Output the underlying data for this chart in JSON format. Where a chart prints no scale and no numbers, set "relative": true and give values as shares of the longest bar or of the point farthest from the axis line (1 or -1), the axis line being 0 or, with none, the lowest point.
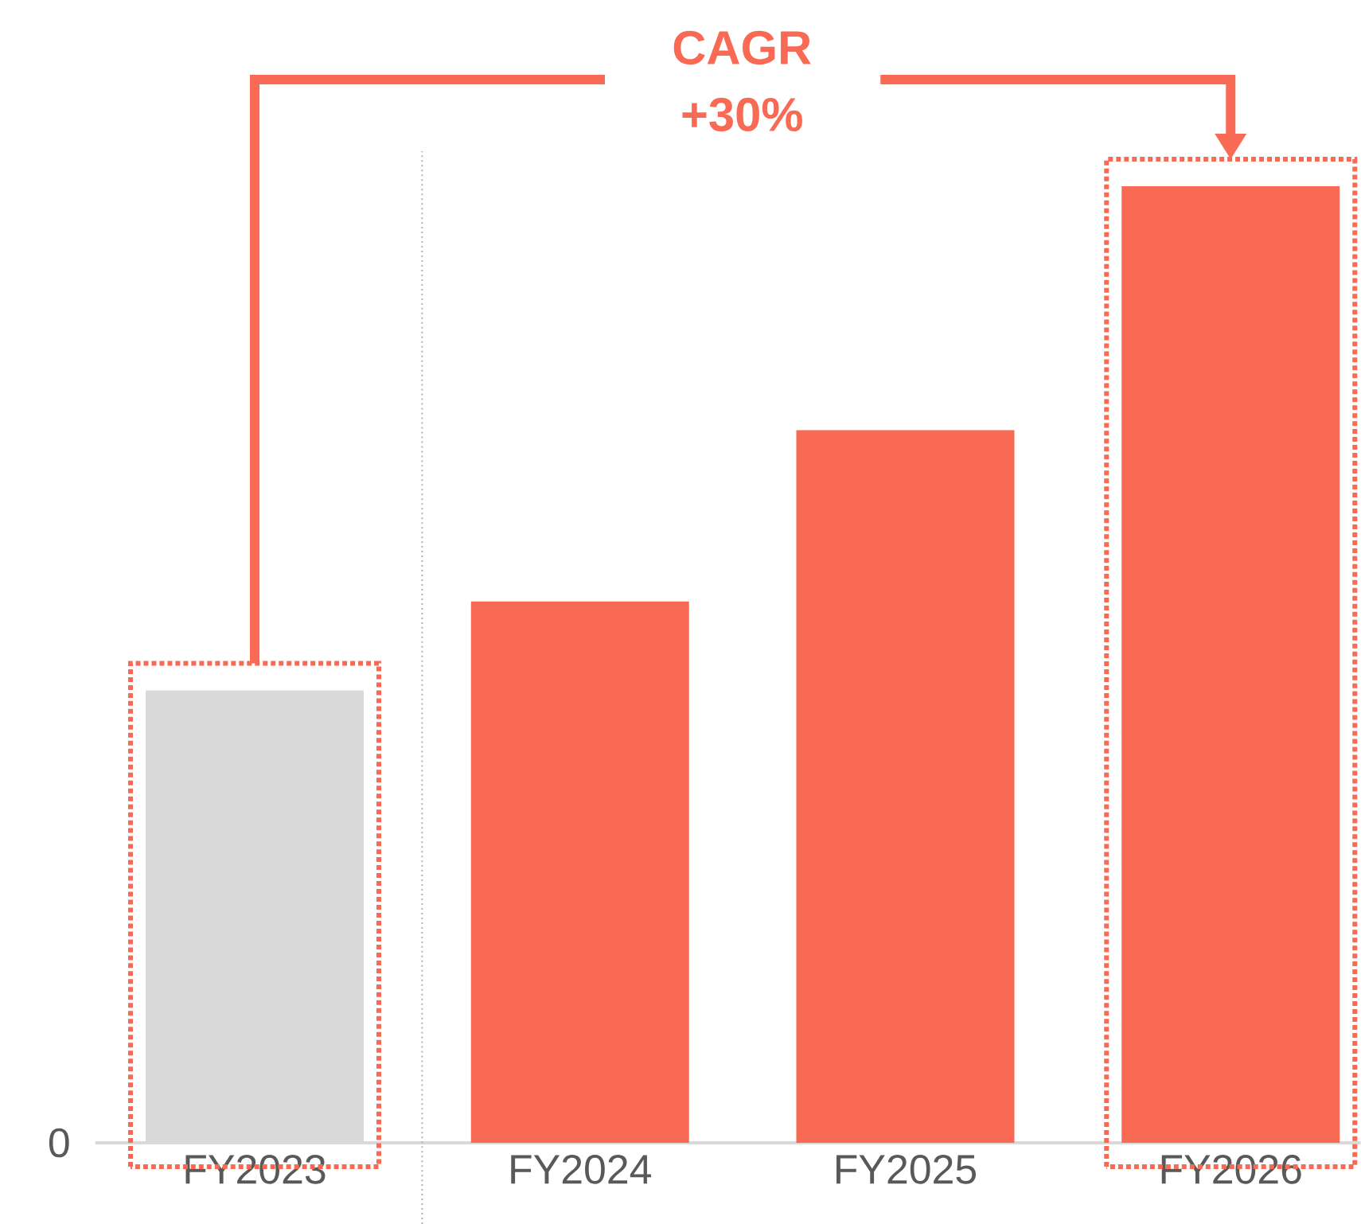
{
  "chart_data": {
    "type": "bar",
    "relative": true,
    "categories": [
      "FY2023",
      "FY2024",
      "FY2025",
      "FY2026"
    ],
    "values": [
      0.473,
      0.566,
      0.745,
      1
    ],
    "colors": [
      "#d9d9d9",
      "#f96a55",
      "#f96a55",
      "#f96a55"
    ],
    "annotations": [
      "CAGR",
      "+30%",
      "0"
    ]
  }
}
